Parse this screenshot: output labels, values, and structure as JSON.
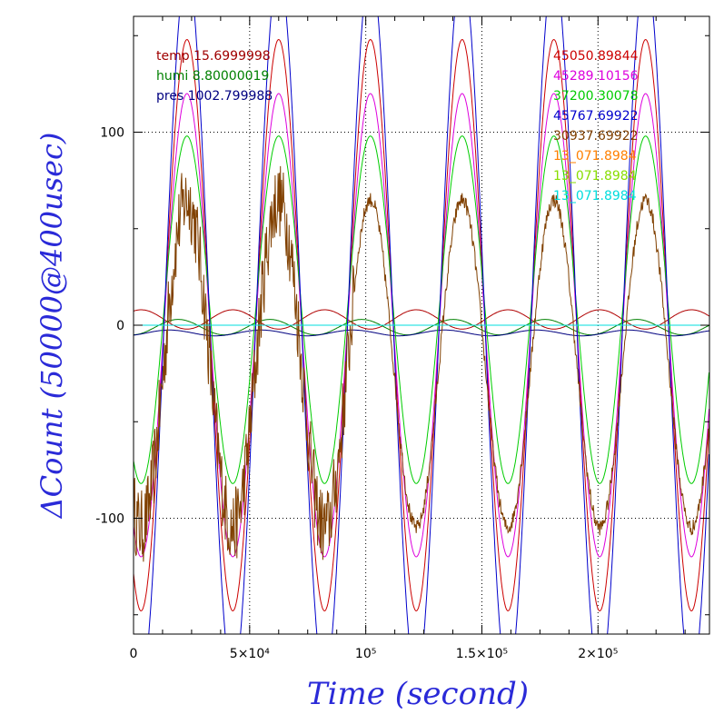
{
  "chart_data": {
    "type": "line",
    "title": "",
    "xlabel": "Time (second)",
    "ylabel": "ΔCount (50000@400usec)",
    "xlim": [
      0,
      248000
    ],
    "ylim": [
      -160,
      160
    ],
    "grid": true,
    "x_ticks": [
      {
        "value": 0,
        "label": "0"
      },
      {
        "value": 50000,
        "label": "5×10⁴"
      },
      {
        "value": 100000,
        "label": "10⁵"
      },
      {
        "value": 150000,
        "label": "1.5×10⁵"
      },
      {
        "value": 200000,
        "label": "2×10⁵"
      }
    ],
    "y_ticks": [
      {
        "value": -100,
        "label": "-100"
      },
      {
        "value": 0,
        "label": "0"
      },
      {
        "value": 100,
        "label": "100"
      }
    ],
    "env_labels": [
      {
        "text": "temp 15.6999998",
        "color": "#a00000"
      },
      {
        "text": "humi 8.80000019",
        "color": "#008000"
      },
      {
        "text": "pres 1002.799988",
        "color": "#000080"
      }
    ],
    "series": [
      {
        "name": "45050.89844",
        "color": "#cc0000",
        "mean": 0,
        "amp": 148,
        "phase": 0,
        "shape": "smooth"
      },
      {
        "name": "45289.10156",
        "color": "#dd00dd",
        "mean": 0,
        "amp": 120,
        "phase": 0,
        "shape": "smooth"
      },
      {
        "name": "37200.30078",
        "color": "#00cc00",
        "mean": 8,
        "amp": 90,
        "phase": 0,
        "shape": "smooth"
      },
      {
        "name": "45767.69922",
        "color": "#0000cc",
        "mean": 0,
        "amp": 185,
        "phase": 0,
        "shape": "smooth"
      },
      {
        "name": "30937.69922",
        "color": "#804000",
        "mean": -20,
        "amp": 85,
        "phase": 0,
        "shape": "noisy"
      },
      {
        "name": "13_071.8984",
        "color": "#ff8000",
        "mean": 0,
        "amp": 0,
        "phase": 0,
        "shape": "flat"
      },
      {
        "name": "13_071.8984",
        "color": "#88dd00",
        "mean": 0,
        "amp": 0,
        "phase": 0,
        "shape": "flat"
      },
      {
        "name": "13_071.8984",
        "color": "#00dddd",
        "mean": 0,
        "amp": 0,
        "phase": 0,
        "shape": "flat"
      }
    ],
    "env_series": [
      {
        "name": "temp",
        "color": "#b00000",
        "mean": 3,
        "amp": 5,
        "phase": 3.14159
      },
      {
        "name": "humi",
        "color": "#008000",
        "mean": -1,
        "amp": 4,
        "phase": 0.6
      },
      {
        "name": "pres",
        "color": "#000080",
        "mean": -4,
        "amp": 1.5,
        "phase": 1.2
      }
    ],
    "period": 39500,
    "peak_times": [
      23000,
      62500,
      102000,
      141500,
      181000,
      220500
    ]
  }
}
